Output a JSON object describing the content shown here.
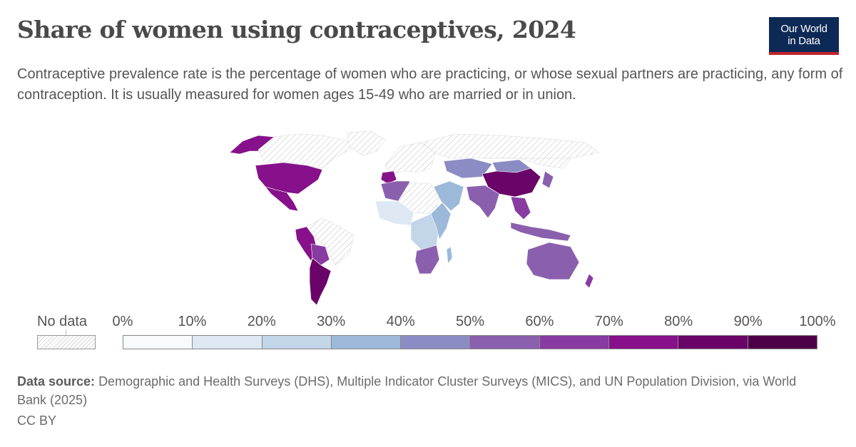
{
  "header": {
    "title": "Share of women using contraceptives, 2024",
    "subtitle": "Contraceptive prevalence rate is the percentage of women who are practicing, or whose sexual partners are practicing, any form of contraception. It is usually measured for women ages 15-49 who are married or in union.",
    "logo_line1": "Our World",
    "logo_line2": "in Data"
  },
  "legend": {
    "no_data_label": "No data",
    "ticks": [
      "0%",
      "10%",
      "20%",
      "30%",
      "40%",
      "50%",
      "60%",
      "70%",
      "80%",
      "90%",
      "100%"
    ],
    "colors": [
      "#f7fbfd",
      "#dde8f3",
      "#c3d5e8",
      "#9cb9da",
      "#8c8cc4",
      "#8a60ae",
      "#883ba1",
      "#86118a",
      "#6a0468",
      "#4d0048"
    ],
    "no_data_color": "#e6e6e6"
  },
  "footer": {
    "source_label": "Data source:",
    "source_text": "Demographic and Health Surveys (DHS), Multiple Indicator Cluster Surveys (MICS), and UN Population Division, via World Bank (2025)",
    "license": "CC BY"
  },
  "chart_data": {
    "type": "choropleth",
    "value_unit": "%",
    "regions": [
      {
        "region": "North America",
        "bin": 7
      },
      {
        "region": "Alaska",
        "bin": 7
      },
      {
        "region": "Canada",
        "bin": null
      },
      {
        "region": "Greenland",
        "bin": null
      },
      {
        "region": "Central America",
        "bin": 7
      },
      {
        "region": "Colombia / Ecuador / Peru",
        "bin": 7
      },
      {
        "region": "Bolivia / Paraguay",
        "bin": 6
      },
      {
        "region": "Brazil",
        "bin": null
      },
      {
        "region": "Argentina / Chile",
        "bin": 8
      },
      {
        "region": "Europe",
        "bin": null
      },
      {
        "region": "Western Russia",
        "bin": null
      },
      {
        "region": "Iberia",
        "bin": 7
      },
      {
        "region": "Morocco / Algeria",
        "bin": 5
      },
      {
        "region": "Sahara",
        "bin": null
      },
      {
        "region": "West Africa",
        "bin": 1
      },
      {
        "region": "Central Africa",
        "bin": 2
      },
      {
        "region": "East Africa",
        "bin": 3
      },
      {
        "region": "Southern Africa",
        "bin": 5
      },
      {
        "region": "Madagascar",
        "bin": 3
      },
      {
        "region": "Arabia / Middle East",
        "bin": 3
      },
      {
        "region": "Kazakhstan / Central Asia",
        "bin": 4
      },
      {
        "region": "Siberia",
        "bin": null
      },
      {
        "region": "Mongolia",
        "bin": 4
      },
      {
        "region": "China",
        "bin": 8
      },
      {
        "region": "Japan / Korea",
        "bin": 5
      },
      {
        "region": "South Asia",
        "bin": 5
      },
      {
        "region": "Southeast Asia",
        "bin": 6
      },
      {
        "region": "Indonesia / Philippines",
        "bin": 5
      },
      {
        "region": "Australia",
        "bin": 5
      },
      {
        "region": "New Zealand",
        "bin": 6
      }
    ]
  }
}
